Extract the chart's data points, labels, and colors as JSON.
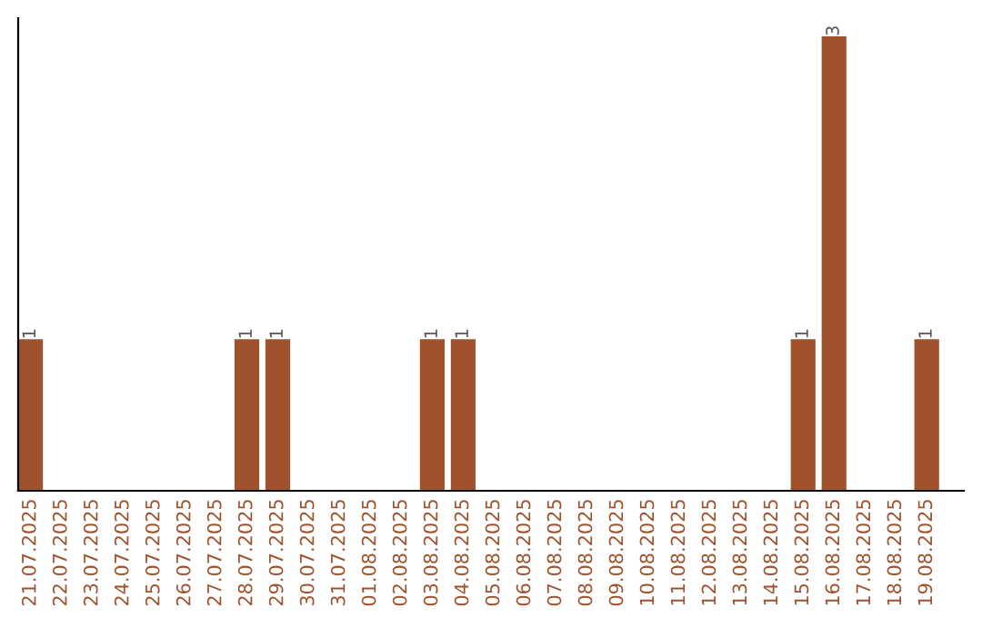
{
  "chart_data": {
    "type": "bar",
    "categories": [
      "21.07.2025",
      "22.07.2025",
      "23.07.2025",
      "24.07.2025",
      "25.07.2025",
      "26.07.2025",
      "27.07.2025",
      "28.07.2025",
      "29.07.2025",
      "30.07.2025",
      "31.07.2025",
      "01.08.2025",
      "02.08.2025",
      "03.08.2025",
      "04.08.2025",
      "05.08.2025",
      "06.08.2025",
      "07.08.2025",
      "08.08.2025",
      "09.08.2025",
      "10.08.2025",
      "11.08.2025",
      "12.08.2025",
      "13.08.2025",
      "14.08.2025",
      "15.08.2025",
      "16.08.2025",
      "17.08.2025",
      "18.08.2025",
      "19.08.2025"
    ],
    "values": [
      1,
      0,
      0,
      0,
      0,
      0,
      0,
      1,
      1,
      0,
      0,
      0,
      0,
      1,
      1,
      0,
      0,
      0,
      0,
      0,
      0,
      0,
      0,
      0,
      0,
      1,
      3,
      0,
      0,
      1
    ],
    "value_labels": [
      "1",
      null,
      null,
      null,
      null,
      null,
      null,
      "1",
      "1",
      null,
      null,
      null,
      null,
      "1",
      "1",
      null,
      null,
      null,
      null,
      null,
      null,
      null,
      null,
      null,
      null,
      "1",
      "3",
      null,
      null,
      "1"
    ],
    "color": "#a0522d",
    "grid": false
  }
}
